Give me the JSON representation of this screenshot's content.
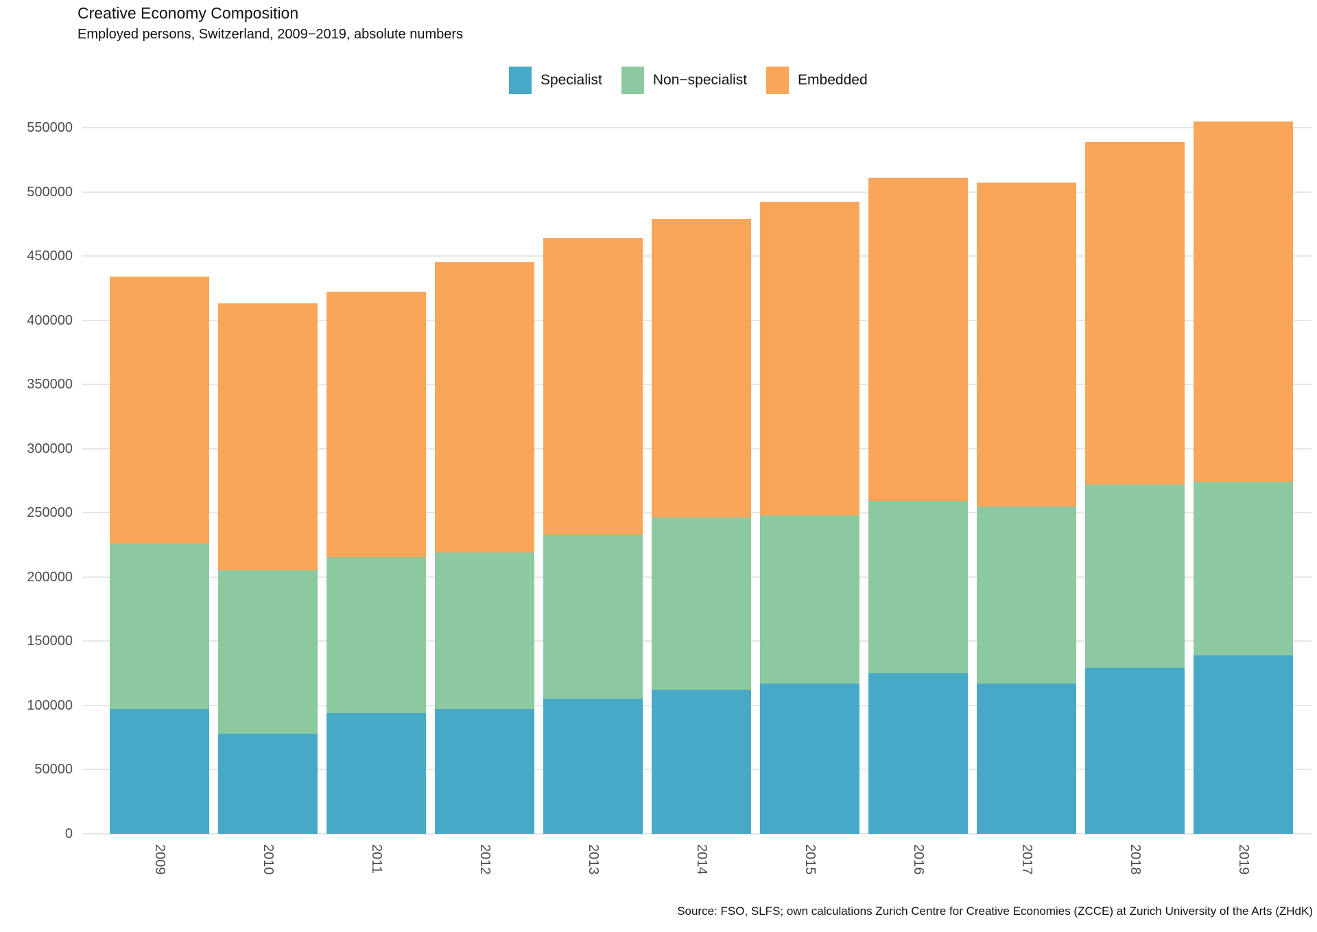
{
  "title": "Creative Economy Composition",
  "subtitle": "Employed persons, Switzerland, 2009−2019, absolute numbers",
  "source": "Source: FSO, SLFS; own calculations Zurich Centre for Creative Economies (ZCCE) at Zurich University of the Arts (ZHdK)",
  "colors": {
    "specialist": "#47A9C6",
    "non_specialist": "#8CC9A1",
    "embedded": "#F9A65A",
    "gridline": "#E6E6E6",
    "axis_text": "#4D4D4D"
  },
  "chart_data": {
    "type": "bar",
    "stacked": true,
    "title": "Creative Economy Composition",
    "subtitle": "Employed persons, Switzerland, 2009−2019, absolute numbers",
    "categories": [
      "2009",
      "2010",
      "2011",
      "2012",
      "2013",
      "2014",
      "2015",
      "2016",
      "2017",
      "2018",
      "2019"
    ],
    "series": [
      {
        "name": "Specialist",
        "color": "#47A9C6",
        "values": [
          97000,
          78000,
          94000,
          97000,
          105000,
          112000,
          117000,
          125000,
          117000,
          129000,
          139000
        ]
      },
      {
        "name": "Non−specialist",
        "color": "#8CC9A1",
        "values": [
          129000,
          127000,
          121000,
          122000,
          128000,
          134000,
          131000,
          134000,
          138000,
          143000,
          135000
        ]
      },
      {
        "name": "Embedded",
        "color": "#F9A65A",
        "values": [
          208000,
          208000,
          207000,
          226000,
          231000,
          233000,
          244000,
          252000,
          252000,
          267000,
          281000
        ]
      }
    ],
    "totals": [
      434000,
      413000,
      422000,
      445000,
      464000,
      479000,
      492000,
      511000,
      507000,
      539000,
      555000
    ],
    "xlabel": "",
    "ylabel": "",
    "ylim": [
      0,
      550000
    ],
    "ytick_step": 50000,
    "ytick_labels": [
      "0",
      "50000",
      "100000",
      "150000",
      "200000",
      "250000",
      "300000",
      "350000",
      "400000",
      "450000",
      "500000",
      "550000"
    ],
    "grid": true,
    "legend_position": "top"
  }
}
